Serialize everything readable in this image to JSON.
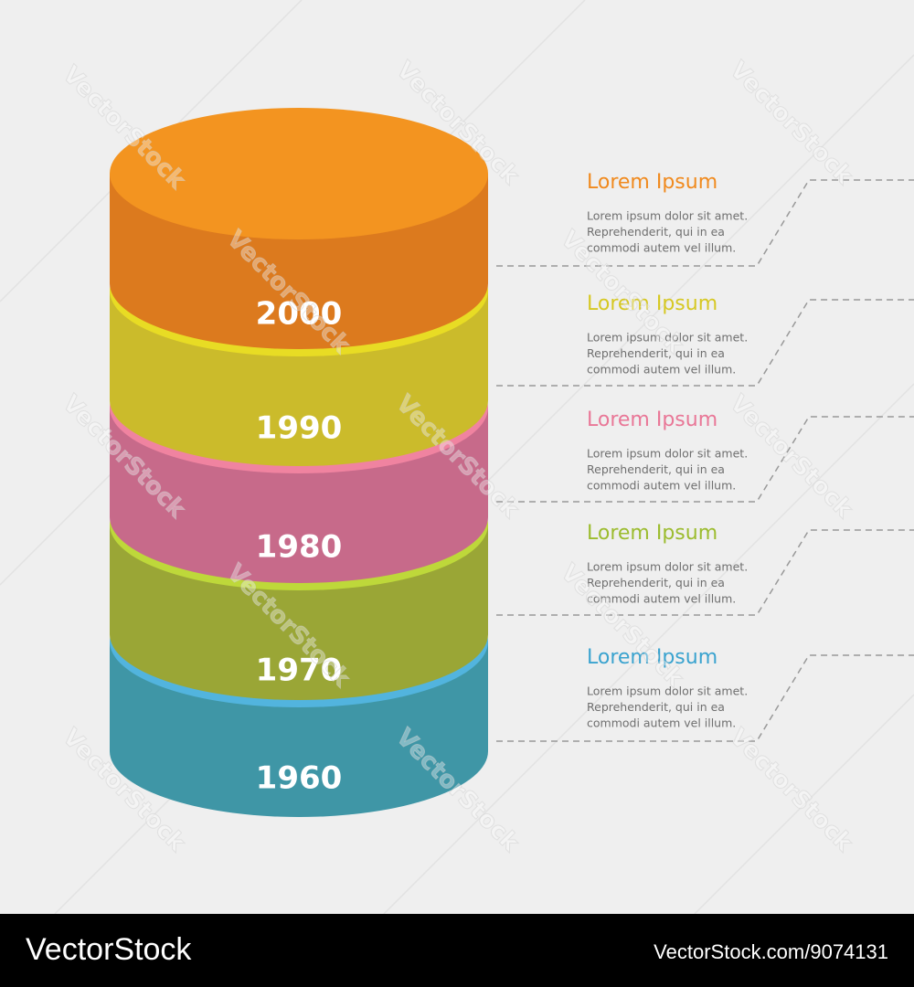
{
  "layers": [
    {
      "year": "2000",
      "title": "Lorem Ipsum",
      "lines": [
        "Lorem ipsum dolor sit amet.",
        "Reprehenderit, qui in ea",
        "commodi autem vel illum."
      ]
    },
    {
      "year": "1990",
      "title": "Lorem Ipsum",
      "lines": [
        "Lorem ipsum dolor sit amet.",
        "Reprehenderit, qui in ea",
        "commodi autem vel illum."
      ]
    },
    {
      "year": "1980",
      "title": "Lorem Ipsum",
      "lines": [
        "Lorem ipsum dolor sit amet.",
        "Reprehenderit, qui in ea",
        "commodi autem vel illum."
      ]
    },
    {
      "year": "1970",
      "title": "Lorem Ipsum",
      "lines": [
        "Lorem ipsum dolor sit amet.",
        "Reprehenderit, qui in ea",
        "commodi autem vel illum."
      ]
    },
    {
      "year": "1960",
      "title": "Lorem Ipsum",
      "lines": [
        "Lorem ipsum dolor sit amet.",
        "Reprehenderit, qui in ea",
        "commodi autem vel illum."
      ]
    }
  ],
  "watermark": "VectorStock",
  "footer": {
    "brand": "VectorStock",
    "id": "VectorStock.com/9074131"
  }
}
